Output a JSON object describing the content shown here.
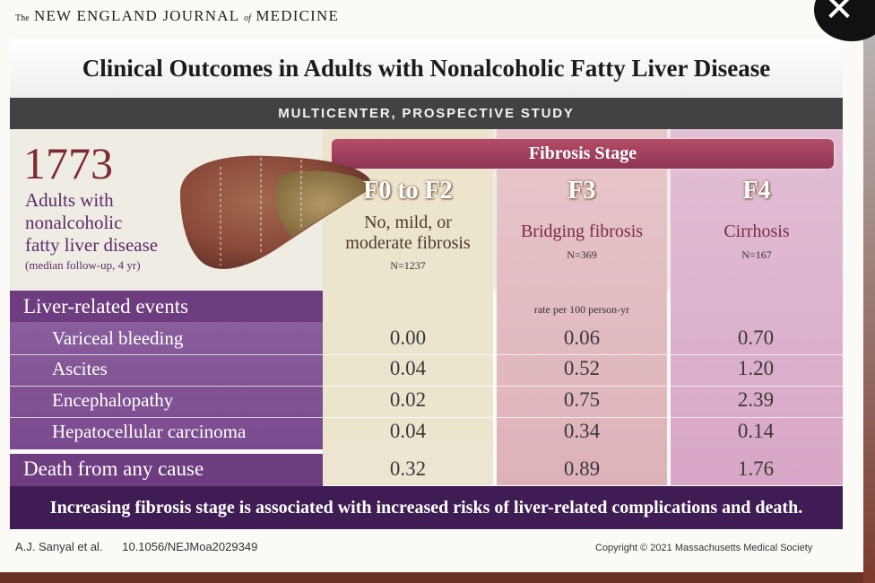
{
  "masthead": {
    "the": "The",
    "name1": "NEW ENGLAND JOURNAL",
    "of": "of",
    "name2": "MEDICINE"
  },
  "title": "Clinical Outcomes in Adults with Nonalcoholic Fatty Liver Disease",
  "study_type": "MULTICENTER, PROSPECTIVE STUDY",
  "cohort": {
    "count": "1773",
    "line1": "Adults with",
    "line2": "nonalcoholic",
    "line3": "fatty liver disease",
    "followup": "(median follow-up, 4 yr)"
  },
  "fibrosis_header": "Fibrosis Stage",
  "stages": [
    {
      "label": "F0 to F2",
      "desc1": "No, mild, or",
      "desc2": "moderate fibrosis",
      "n": "N=1237"
    },
    {
      "label": "F3",
      "desc1": "Bridging fibrosis",
      "desc2": "",
      "n": "N=369"
    },
    {
      "label": "F4",
      "desc1": "Cirrhosis",
      "desc2": "",
      "n": "N=167"
    }
  ],
  "events_header": "Liver-related events",
  "rate_unit": "rate per 100 person-yr",
  "rows": [
    {
      "label": "Variceal bleeding",
      "values": [
        "0.00",
        "0.06",
        "0.70"
      ]
    },
    {
      "label": "Ascites",
      "values": [
        "0.04",
        "0.52",
        "1.20"
      ]
    },
    {
      "label": "Encephalopathy",
      "values": [
        "0.02",
        "0.75",
        "2.39"
      ]
    },
    {
      "label": "Hepatocellular carcinoma",
      "values": [
        "0.04",
        "0.34",
        "0.14"
      ]
    }
  ],
  "death": {
    "label": "Death from any cause",
    "values": [
      "0.32",
      "0.89",
      "1.76"
    ]
  },
  "conclusion": "Increasing fibrosis stage is associated with increased risks of liver-related complications and death.",
  "footer": {
    "authors": "A.J. Sanyal et al.",
    "doi": "10.1056/NEJMoa2029349",
    "copyright": "Copyright © 2021 Massachusetts Medical Society"
  },
  "close_icon": "close-icon"
}
